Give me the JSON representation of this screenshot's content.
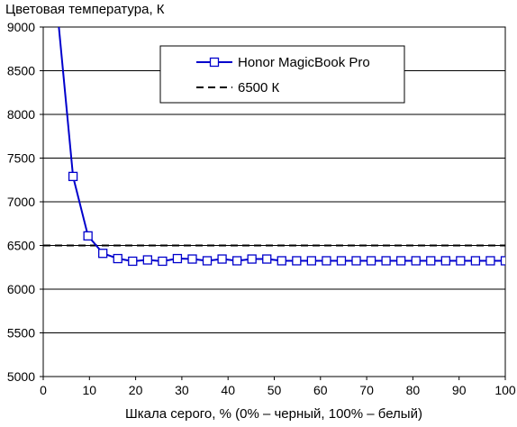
{
  "chart_data": {
    "type": "line",
    "ylabel": "Цветовая температура, К",
    "xlabel": "Шкала серого, % (0% – черный, 100% – белый)",
    "xlim": [
      0,
      100
    ],
    "ylim": [
      5000,
      9000
    ],
    "x_ticks": [
      0,
      10,
      20,
      30,
      40,
      50,
      60,
      70,
      80,
      90,
      100
    ],
    "y_ticks": [
      5000,
      5500,
      6000,
      6500,
      7000,
      7500,
      8000,
      8500,
      9000
    ],
    "grid": "horizontal",
    "legend_position": "top-right",
    "series": [
      {
        "name": "Honor MagicBook Pro",
        "color": "#0000cc",
        "style": "line-with-open-square-markers",
        "x": [
          6.45,
          9.68,
          12.9,
          16.13,
          19.35,
          22.58,
          25.81,
          29.03,
          32.26,
          35.48,
          38.71,
          41.94,
          45.16,
          48.39,
          51.61,
          54.84,
          58.06,
          61.29,
          64.52,
          67.74,
          70.97,
          74.19,
          77.42,
          80.65,
          83.87,
          87.1,
          90.32,
          93.55,
          96.77,
          100
        ],
        "y": [
          7290,
          6610,
          6410,
          6350,
          6320,
          6335,
          6320,
          6350,
          6345,
          6325,
          6345,
          6325,
          6345,
          6345,
          6325,
          6325,
          6325,
          6325,
          6325,
          6325,
          6325,
          6325,
          6325,
          6325,
          6325,
          6325,
          6325,
          6325,
          6325,
          6325
        ],
        "lead_in": {
          "x": [
            3.3
          ],
          "y": [
            9050
          ]
        }
      },
      {
        "name": "6500 К",
        "color": "#000000",
        "style": "dashed",
        "x": [
          0,
          100
        ],
        "y": [
          6500,
          6500
        ]
      }
    ]
  }
}
